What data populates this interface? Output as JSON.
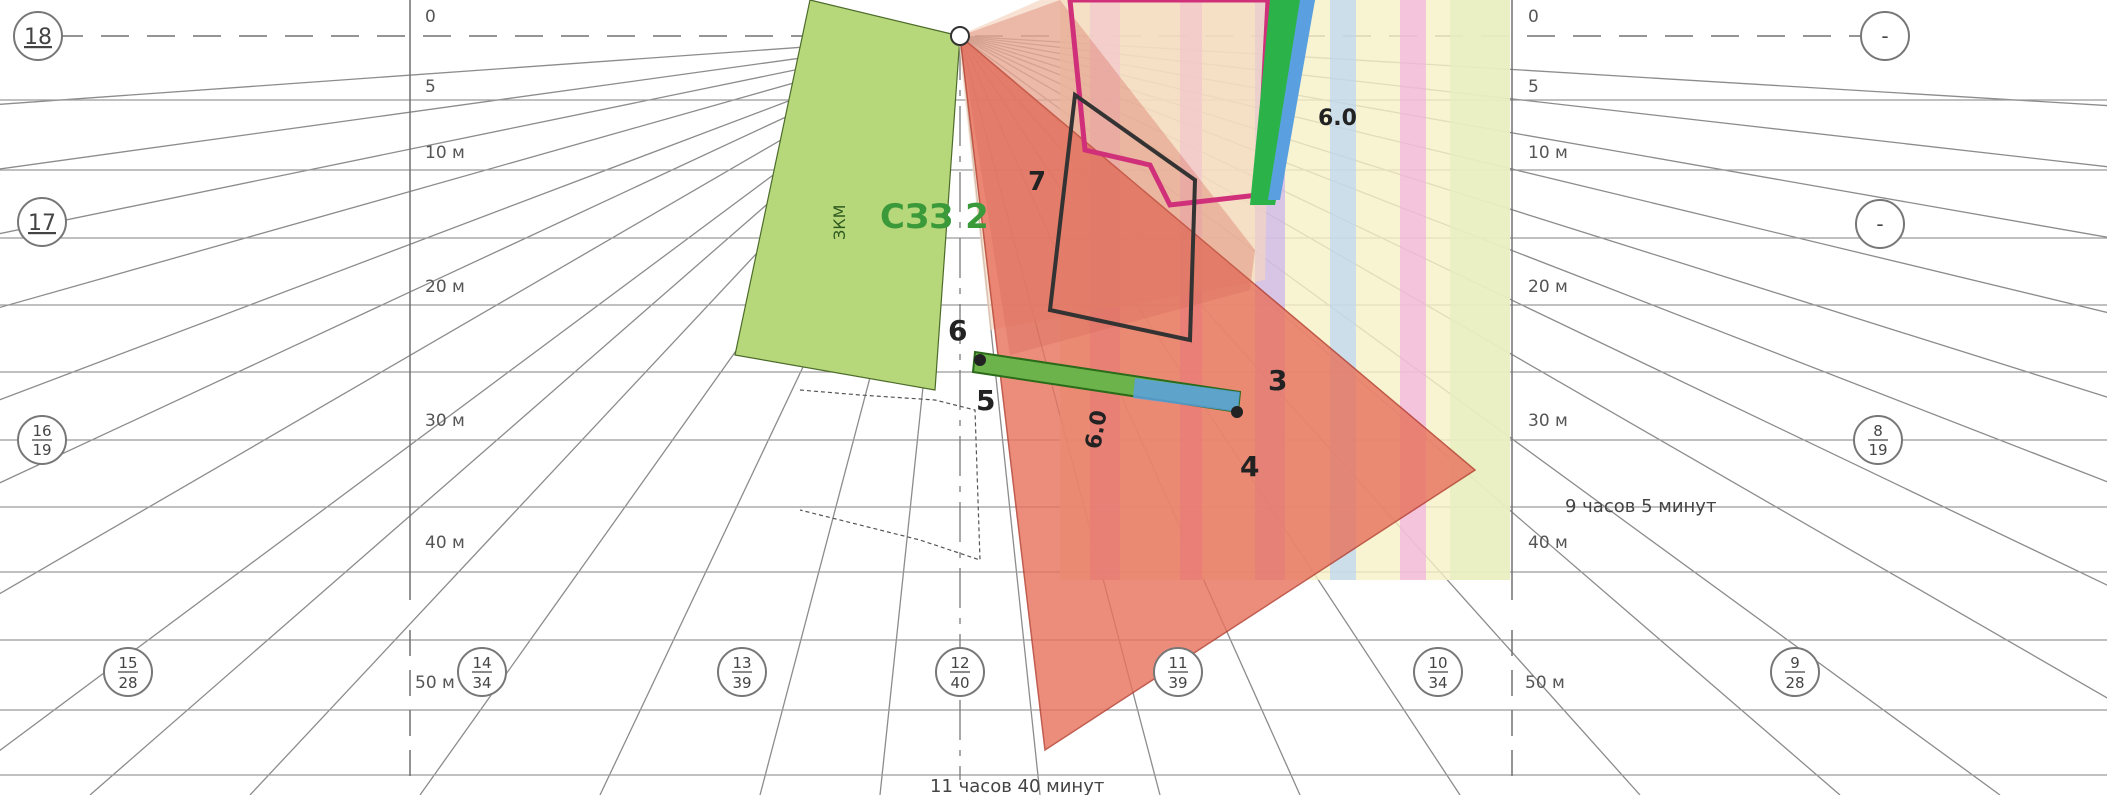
{
  "title": "",
  "scale_left": [
    {
      "label": "0"
    },
    {
      "label": "5"
    },
    {
      "label": "10 м"
    },
    {
      "label": "20 м"
    },
    {
      "label": "30 м"
    },
    {
      "label": "40 м"
    },
    {
      "label": "50 м"
    }
  ],
  "scale_right": [
    {
      "label": "0"
    },
    {
      "label": "5"
    },
    {
      "label": "10 м"
    },
    {
      "label": "20 м"
    },
    {
      "label": "30 м"
    },
    {
      "label": "40 м"
    },
    {
      "label": "50 м"
    }
  ],
  "row_markers_left": [
    {
      "top": "18",
      "bottom": ""
    },
    {
      "top": "17",
      "bottom": ""
    },
    {
      "top": "16",
      "bottom": "19"
    }
  ],
  "row_markers_right": [
    {
      "top": "-",
      "bottom": ""
    },
    {
      "top": "-",
      "bottom": ""
    },
    {
      "top": "8",
      "bottom": "19"
    }
  ],
  "bottom_markers": [
    {
      "top": "15",
      "bottom": "28"
    },
    {
      "top": "14",
      "bottom": "34"
    },
    {
      "top": "13",
      "bottom": "39"
    },
    {
      "top": "12",
      "bottom": "40"
    },
    {
      "top": "11",
      "bottom": "39"
    },
    {
      "top": "10",
      "bottom": "34"
    },
    {
      "top": "9",
      "bottom": "28"
    }
  ],
  "zone_label": "СЗЗ 2",
  "zone_small": "ЗКМ",
  "dimension_labels": [
    "6.0",
    "6.0"
  ],
  "point_labels": [
    "3",
    "4",
    "5",
    "6",
    "7"
  ],
  "time_label_right": "9 часов 5 минут",
  "time_label_bottom": "11 часов 40 минут",
  "colors": {
    "grid": "#8c8c8c",
    "shadow_fill": "#e8735f",
    "zone_fill": "#b6d77a",
    "accent_green": "#2bb34a",
    "accent_magenta": "#d02f9a",
    "accent_blue": "#5aa0e0"
  }
}
